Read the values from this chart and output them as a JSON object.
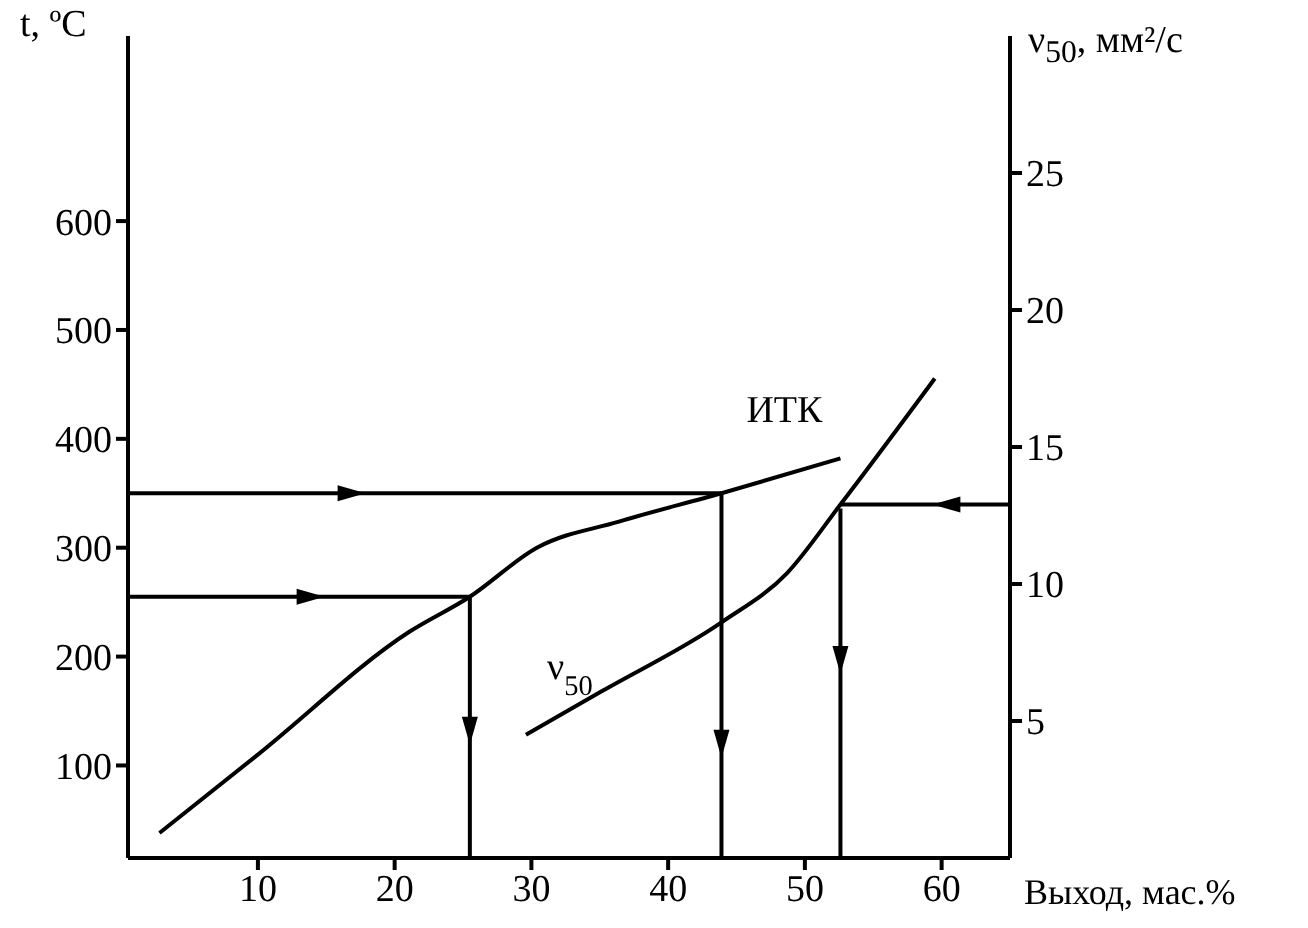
{
  "chart_data": {
    "type": "line",
    "xlabel": "Выход, мас.%",
    "ylabel": "t, ºC",
    "y2label": "ν$_{50}$, мм²/с",
    "xlim": [
      0.5,
      65
    ],
    "xticks": [
      10,
      20,
      30,
      40,
      50,
      60
    ],
    "ylim": [
      15,
      770
    ],
    "yticks": [
      100,
      200,
      300,
      400,
      500,
      600
    ],
    "y2lim": [
      0,
      30
    ],
    "y2ticks": [
      5,
      10,
      15,
      20,
      25
    ],
    "grid": false,
    "marker": "none",
    "line_style": "solid",
    "series": [
      {
        "name": "ИТК",
        "color": "#000000",
        "x": [
          2.8,
          10,
          21.1,
          25.5,
          30.4,
          36.4,
          43.9,
          52.6
        ],
        "values": [
          38,
          110,
          223,
          255,
          300,
          324,
          350,
          382
        ]
      },
      {
        "name": "ν$_{50}$",
        "color": "#000000",
        "axis": "y2",
        "x": [
          29.6,
          35.2,
          43.9,
          48.7,
          52.6,
          59.5
        ],
        "values": [
          4.5,
          6.1,
          8.6,
          10.4,
          12.9,
          17.5
        ]
      },
      {
        "color": "#000000",
        "x": [
          0.5,
          17,
          43.9
        ],
        "values": [
          350,
          350,
          350
        ]
      },
      {
        "color": "#000000",
        "x": [
          0.5,
          14,
          25.5
        ],
        "values": [
          255,
          255,
          255
        ]
      },
      {
        "color": "#000000",
        "axis": "y2",
        "x": [
          65,
          60.2,
          52.6
        ],
        "values": [
          12.9,
          12.9,
          12.9
        ]
      },
      {
        "color": "#000000",
        "x": [
          25.5,
          25.5,
          25.5
        ],
        "values": [
          255,
          130,
          15
        ]
      },
      {
        "color": "#000000",
        "x": [
          43.9,
          43.9,
          43.9
        ],
        "values": [
          350,
          118,
          15
        ]
      },
      {
        "color": "#000000",
        "x": [
          52.6,
          52.6,
          52.6
        ],
        "values": [
          336,
          195,
          15
        ]
      }
    ]
  }
}
